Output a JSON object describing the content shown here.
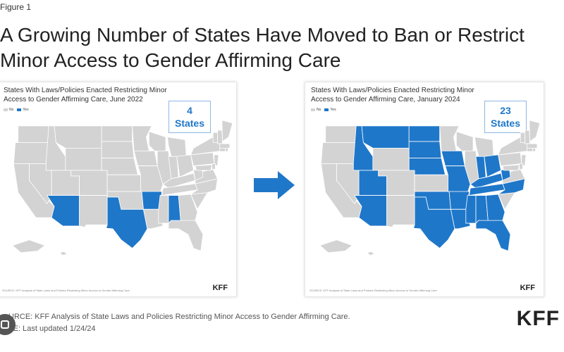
{
  "figure_label": "Figure 1",
  "title": "A Growing Number of States Have Moved to Ban or Restrict Minor Access to Gender Affirming Care",
  "colors": {
    "yes": "#1f77c9",
    "no": "#d3d3d3",
    "border": "#ffffff"
  },
  "panels": [
    {
      "title": "States With Laws/Policies Enacted Restricting Minor Access to Gender Affirming Care, June 2022",
      "legend_no": "No",
      "legend_yes": "Yes",
      "count_number": "4",
      "count_word": "States",
      "restricted_states": [
        "AZ",
        "TX",
        "AR",
        "AL"
      ],
      "source": "SOURCE: KFF Analysis of State Laws and Policies Restricting Minor Access to Gender Affirming Care",
      "logo": "KFF"
    },
    {
      "title": "States With Laws/Policies Enacted Restricting Minor Access to Gender Affirming Care, January 2024",
      "legend_no": "No",
      "legend_yes": "Yes",
      "count_number": "23",
      "count_word": "States",
      "restricted_states": [
        "ID",
        "MT",
        "ND",
        "SD",
        "NE",
        "IA",
        "MO",
        "OK",
        "TX",
        "AR",
        "LA",
        "MS",
        "AL",
        "GA",
        "FL",
        "TN",
        "KY",
        "IN",
        "OH",
        "WV",
        "NC",
        "UT",
        "AZ"
      ],
      "source": "SOURCE: KFF Analysis of State Laws and Policies Restricting Minor Access to Gender Affirming Care",
      "logo": "KFF"
    }
  ],
  "footer": {
    "source": "URCE: KFF Analysis of State Laws and Policies Restricting Minor Access to Gender Affirming Care.",
    "note": "TE: Last updated 1/24/24",
    "logo": "KFF"
  },
  "icons": {
    "transition_arrow": "arrow-right-icon",
    "overlay_button": "lens-icon"
  }
}
